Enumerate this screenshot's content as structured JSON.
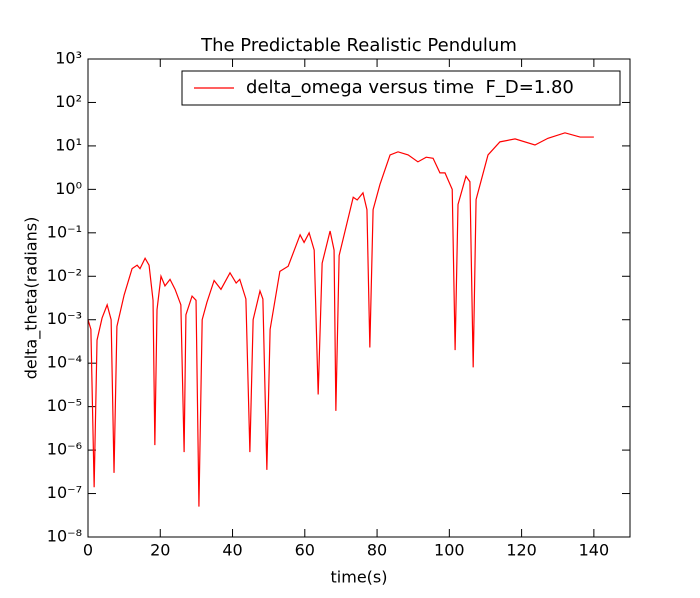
{
  "chart_data": {
    "type": "line",
    "title": "The Predictable Realistic Pendulum",
    "xlabel": "time(s)",
    "ylabel": "delta_theta(radians)",
    "x": [
      0,
      0.8,
      1.7,
      2.5,
      3.9,
      5.3,
      6.4,
      7.2,
      8.0,
      10,
      12.2,
      13.6,
      14.4,
      15.8,
      16.9,
      18,
      18.5,
      19.1,
      20.2,
      21.3,
      22.7,
      24.1,
      25.7,
      26.6,
      27.1,
      28.8,
      29.9,
      30.7,
      31.6,
      32.9,
      34.9,
      36.8,
      39.3,
      41,
      42,
      43.7,
      44.8,
      45.7,
      47.6,
      48.4,
      49.5,
      50.4,
      53.1,
      55.4,
      58.7,
      59.8,
      61.2,
      62.6,
      63.7,
      64.8,
      67,
      68.1,
      68.6,
      69.5,
      73.4,
      74.5,
      76.1,
      77.2,
      78,
      78.9,
      80.8,
      83.6,
      85.8,
      88.6,
      91.3,
      93.6,
      95.5,
      97.4,
      98.8,
      100.8,
      101.6,
      102.4,
      104.6,
      105.7,
      106.6,
      107.4,
      110.7,
      114,
      118.2,
      123.7,
      127.3,
      132,
      136.2,
      140
    ],
    "series": [
      {
        "name": "delta_omega versus time  F_D=1.80",
        "color": "#ff0000",
        "values": [
          0.001,
          0.0006,
          1.4e-07,
          0.00034,
          0.0011,
          0.0022,
          0.001,
          3e-07,
          0.0007,
          0.0037,
          0.015,
          0.018,
          0.015,
          0.026,
          0.018,
          0.0028,
          1.3e-06,
          0.0017,
          0.01,
          0.006,
          0.0085,
          0.005,
          0.0022,
          9e-07,
          0.0013,
          0.0035,
          0.0028,
          5e-08,
          0.001,
          0.0025,
          0.008,
          0.005,
          0.012,
          0.007,
          0.0085,
          0.003,
          9e-07,
          0.001,
          0.0046,
          0.003,
          3.5e-07,
          0.0006,
          0.013,
          0.017,
          0.09,
          0.06,
          0.1,
          0.04,
          1.9e-05,
          0.02,
          0.11,
          0.04,
          8e-06,
          0.03,
          0.66,
          0.57,
          0.83,
          0.34,
          0.00023,
          0.34,
          1.3,
          6.2,
          7.3,
          6.2,
          4.3,
          5.5,
          5.2,
          2.4,
          2.4,
          1,
          0.0002,
          0.45,
          2,
          1.5,
          8e-05,
          0.58,
          6.2,
          12.4,
          14.5,
          10.5,
          15,
          20,
          16,
          16
        ]
      }
    ],
    "xlim": [
      0,
      150
    ],
    "xticks": [
      0,
      20,
      40,
      60,
      80,
      100,
      120,
      140
    ],
    "ylim": [
      1e-08,
      1000
    ],
    "log_y": true,
    "yticks": [
      {
        "value": 1e-08,
        "label": "10⁻⁸"
      },
      {
        "value": 1e-07,
        "label": "10⁻⁷"
      },
      {
        "value": 1e-06,
        "label": "10⁻⁶"
      },
      {
        "value": 1e-05,
        "label": "10⁻⁵"
      },
      {
        "value": 0.0001,
        "label": "10⁻⁴"
      },
      {
        "value": 0.001,
        "label": "10⁻³"
      },
      {
        "value": 0.01,
        "label": "10⁻²"
      },
      {
        "value": 0.1,
        "label": "10⁻¹"
      },
      {
        "value": 1,
        "label": "10⁰"
      },
      {
        "value": 10,
        "label": "10¹"
      },
      {
        "value": 100,
        "label": "10²"
      },
      {
        "value": 1000,
        "label": "10³"
      }
    ],
    "legend_loc": "upper right"
  }
}
